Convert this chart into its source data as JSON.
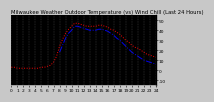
{
  "title": "Milwaukee Weather Outdoor Temperature (vs) Wind Chill (Last 24 Hours)",
  "background_color": "#c8c8c8",
  "plot_bg_color": "#000000",
  "grid_color": "#606060",
  "temp_color": "#ff0000",
  "windchill_color": "#0000ee",
  "xlim": [
    0,
    24
  ],
  "ylim": [
    -15,
    55
  ],
  "ytick_values": [
    50,
    40,
    30,
    20,
    10,
    0,
    -10
  ],
  "ytick_labels": [
    "50",
    "40",
    "30",
    "20",
    "10",
    "0",
    "-10"
  ],
  "time_hours": [
    0,
    0.5,
    1,
    1.5,
    2,
    2.5,
    3,
    3.5,
    4,
    4.5,
    5,
    5.5,
    6,
    6.5,
    7,
    7.5,
    8,
    8.5,
    9,
    9.5,
    10,
    10.5,
    11,
    11.5,
    12,
    12.5,
    13,
    13.5,
    14,
    14.5,
    15,
    15.5,
    16,
    16.5,
    17,
    17.5,
    18,
    18.5,
    19,
    19.5,
    20,
    20.5,
    21,
    21.5,
    22,
    22.5,
    23,
    23.5,
    24
  ],
  "temp_values": [
    3,
    3,
    2,
    2,
    2,
    2,
    2,
    2,
    2,
    2,
    3,
    3,
    4,
    5,
    8,
    14,
    24,
    31,
    37,
    41,
    44,
    47,
    47,
    46,
    45,
    44,
    44,
    44,
    44,
    45,
    45,
    44,
    43,
    41,
    40,
    38,
    36,
    33,
    30,
    28,
    25,
    23,
    22,
    20,
    18,
    16,
    15,
    14,
    13
  ],
  "windchill_values": [
    null,
    null,
    null,
    null,
    null,
    null,
    null,
    null,
    null,
    null,
    null,
    null,
    null,
    null,
    null,
    null,
    18,
    25,
    32,
    37,
    40,
    44,
    44,
    43,
    42,
    41,
    40,
    40,
    40,
    41,
    41,
    40,
    39,
    37,
    35,
    32,
    30,
    27,
    24,
    21,
    18,
    16,
    14,
    12,
    10,
    9,
    8,
    7,
    6
  ],
  "xtick_positions": [
    0,
    1,
    2,
    3,
    4,
    5,
    6,
    7,
    8,
    9,
    10,
    11,
    12,
    13,
    14,
    15,
    16,
    17,
    18,
    19,
    20,
    21,
    22,
    23,
    24
  ],
  "xtick_labels": [
    "0",
    "1",
    "2",
    "3",
    "4",
    "5",
    "6",
    "7",
    "8",
    "9",
    "10",
    "11",
    "12",
    "13",
    "14",
    "15",
    "16",
    "17",
    "18",
    "19",
    "20",
    "21",
    "22",
    "23",
    "24"
  ],
  "fontsize_title": 3.8,
  "fontsize_ticks": 3.2,
  "linewidth": 0.7,
  "marker_size": 1.2,
  "right_border_color": "#000000",
  "outer_bg": "#c8c8c8"
}
